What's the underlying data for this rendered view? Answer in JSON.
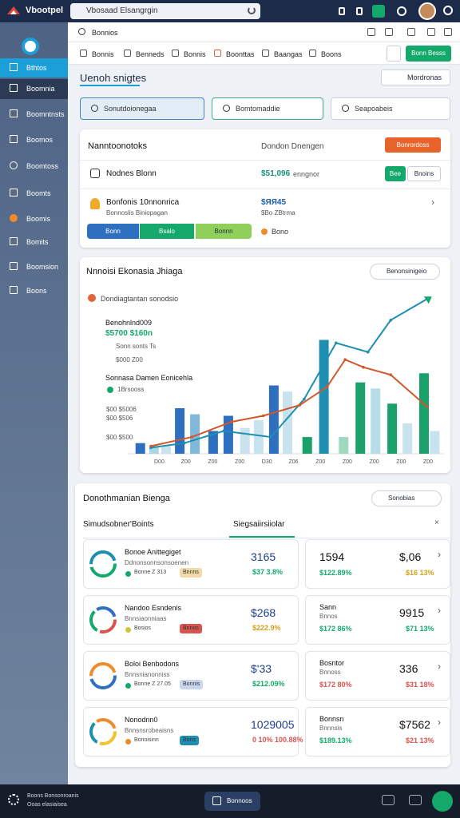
{
  "topbar": {
    "app_name": "Vbootpel",
    "search": "Vbosaad Elsangrgin"
  },
  "sidebar": {
    "items": [
      "Bthtos",
      "Boomnia",
      "Boomntnsts",
      "Boomos",
      "Boomtoss",
      "Boomts",
      "Boomis",
      "Bomits",
      "Boomsion",
      "Boons"
    ]
  },
  "toolbar": {
    "title": "Bonnios"
  },
  "tabs": [
    "Bonnis",
    "Benneds",
    "Bonnis",
    "Boonttas",
    "Baangas",
    "Boons"
  ],
  "primary_button": "Bonn Besss",
  "section": {
    "title": "Uenoh snigtes",
    "button": "Mordronas"
  },
  "filters": [
    "Sonutdoionegaa",
    "Bomtomaddie",
    "Seapoabeis"
  ],
  "summary": {
    "title": "Nanntoonotoks",
    "subtitle": "Dondon Dnengen",
    "button": "Bonrordoss",
    "row1": {
      "label": "Nodnes Blonn",
      "value": "$51,096",
      "note": "enngnor",
      "buttons": [
        "Bee",
        "Bnoins"
      ]
    },
    "row2": {
      "label": "Bonfonis 10nnonrica",
      "sub": "Bonnoslis Biniopagan",
      "value": "$ЯЯ45",
      "note": "$Bo ZBtrma"
    },
    "segments": [
      "Bonn",
      "Bsalo",
      "Bonnn"
    ],
    "status": "Bono"
  },
  "chart": {
    "title": "Nnnoisi Ekonasia Jhiaga",
    "dropdown": "Benonsinigeio",
    "legend": "Dondiagtantan sonodsio",
    "annotations": [
      "Benohnlnd009",
      "$5700 $160n",
      "Sonn sonts Ts",
      "$000 Z00",
      "Sonnasa Damen Eonicehla",
      "1Brsooss",
      "$00 $5006",
      "$00 $506",
      "$00 $500"
    ],
    "x_labels": [
      "D00",
      "Z00",
      "Z00",
      "Z00",
      "D30",
      "Z06",
      "Z00",
      "Z00",
      "Z00",
      "Z00",
      "Z00"
    ],
    "xlim": [
      0,
      20
    ],
    "ylim": [
      0,
      110
    ],
    "bars": {
      "x": [
        0.3,
        1.2,
        2,
        2.9,
        3.9,
        5.1,
        6.1,
        7.2,
        8.1,
        9.1,
        10,
        11.3,
        12.4,
        13.7,
        14.8,
        15.8,
        16.9,
        17.9,
        19,
        19.7
      ],
      "values": [
        7,
        5,
        5,
        30,
        26,
        15,
        25,
        17,
        22,
        45,
        41,
        11,
        75,
        11,
        47,
        43,
        33,
        20,
        53,
        15
      ],
      "colors": [
        "#2f6fc0",
        "#a9d6e5",
        "#c8e3ee",
        "#2f6fc0",
        "#7fb8d9",
        "#2f6fc0",
        "#2f6fc0",
        "#c8e3ee",
        "#c8e3ee",
        "#2f6fc0",
        "#c8e3ee",
        "#1aa06a",
        "#1e8fb0",
        "#9fd8c0",
        "#1aa06a",
        "#b6dde8",
        "#1aa06a",
        "#c8e3ee",
        "#1aa06a",
        "#c8e3ee"
      ]
    },
    "lines": [
      {
        "color": "#1a8fb0",
        "x": [
          1,
          3.2,
          5.8,
          8.9,
          11.1,
          13.2,
          15.3,
          16.8,
          19.2
        ],
        "values": [
          4,
          7,
          15,
          11,
          36,
          73,
          67,
          88,
          102
        ]
      },
      {
        "color": "#d2572a",
        "x": [
          1,
          3.7,
          6.3,
          8.4,
          10.8,
          12.6,
          13.8,
          15,
          16.8,
          19.2
        ],
        "values": [
          5,
          11,
          21,
          25,
          32,
          44,
          62,
          57,
          52,
          31
        ]
      }
    ]
  },
  "breakdown": {
    "title": "Donothmanian Bienga",
    "dropdown": "Sonobias",
    "tabs": [
      "Simudsobner'Boints",
      "Siegsaiirsiiolar"
    ],
    "rows": [
      {
        "title": "Bonoe Anittegiget",
        "sub": "Ddnonsonnsonsoenen",
        "chips": [
          "Bonne Z 313",
          "Bnnns"
        ],
        "value": "3165",
        "pct": "$37 3.8%",
        "right": {
          "a": "1594",
          "b": "$,06",
          "pa": "$122.89%",
          "pb": "$16 13%"
        }
      },
      {
        "title": "Nandoo Esndenis",
        "sub": "Bnnsiaonniaas",
        "chips": [
          "Bosios",
          "Bnnos"
        ],
        "value": "$268",
        "pct": "$222.9%",
        "right": {
          "label": "Sann",
          "sub": "Bnnos",
          "b": "9915",
          "pa": "$172 86%",
          "pb": "$71 13%"
        }
      },
      {
        "title": "Boloi Benbodons",
        "sub": "Bnnsnianonniss",
        "chips": [
          "Bonne Z 27.05",
          "Bonnis"
        ],
        "value": "$'33",
        "pct": "$212.09%",
        "right": {
          "label": "Bosntor",
          "sub": "Bnnoss",
          "b": "336",
          "pa": "$172 80%",
          "pb": "$31 18%"
        }
      },
      {
        "title": "Nonodnn0",
        "sub": "Bnnsnsrobeaisns",
        "chips": [
          "Bonoisinn",
          "Bons"
        ],
        "value": "1029005",
        "pct": "0 10% 100.88%",
        "right": {
          "label": "Bonnsn",
          "sub": "Bnnnsis",
          "b": "$7562",
          "pa": "$189.13%",
          "pb": "$21 13%"
        }
      }
    ]
  },
  "footer": {
    "line1": "Boons Bonsonroanis",
    "line2": "Ooas elasiaisea",
    "button": "Bonnoos"
  }
}
